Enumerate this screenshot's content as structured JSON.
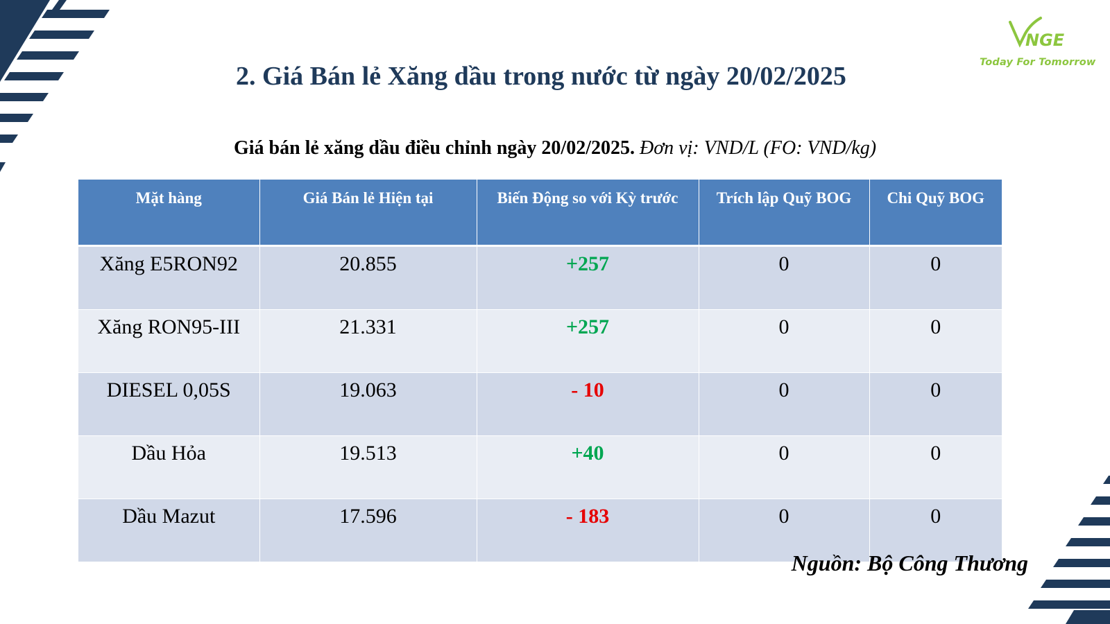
{
  "slide": {
    "title": "2. Giá Bán lẻ Xăng dầu trong nước từ ngày 20/02/2025",
    "subtitle_bold": "Giá bán lẻ xăng dầu điều chỉnh ngày 20/02/2025.",
    "subtitle_italic": "Đơn vị: VND/L (FO: VND/kg)",
    "source": "Nguồn: Bộ Công Thương"
  },
  "logo": {
    "text": "VNGE",
    "tagline": "Today For Tomorrow",
    "color": "#8cc63f"
  },
  "colors": {
    "title": "#1f3a5a",
    "header_bg": "#4f81bd",
    "row_odd": "#d0d8e8",
    "row_even": "#e9edf4",
    "positive": "#00a651",
    "negative": "#e60000",
    "deco_stripes": "#1f3a5a"
  },
  "table": {
    "headers": [
      "Mặt hàng",
      "Giá Bán lẻ Hiện tại",
      "Biến Động so với Kỳ trước",
      "Trích lập Quỹ BOG",
      "Chi Quỹ BOG"
    ],
    "rows": [
      {
        "item": "Xăng E5RON92",
        "price": "20.855",
        "change": "+257",
        "change_sign": "positive",
        "bog_in": "0",
        "bog_out": "0"
      },
      {
        "item": "Xăng RON95-III",
        "price": "21.331",
        "change": "+257",
        "change_sign": "positive",
        "bog_in": "0",
        "bog_out": "0"
      },
      {
        "item": "DIESEL 0,05S",
        "price": "19.063",
        "change": "- 10",
        "change_sign": "negative",
        "bog_in": "0",
        "bog_out": "0"
      },
      {
        "item": "Dầu Hỏa",
        "price": "19.513",
        "change": "+40",
        "change_sign": "positive",
        "bog_in": "0",
        "bog_out": "0"
      },
      {
        "item": "Dầu Mazut",
        "price": "17.596",
        "change": "- 183",
        "change_sign": "negative",
        "bog_in": "0",
        "bog_out": "0"
      }
    ]
  }
}
